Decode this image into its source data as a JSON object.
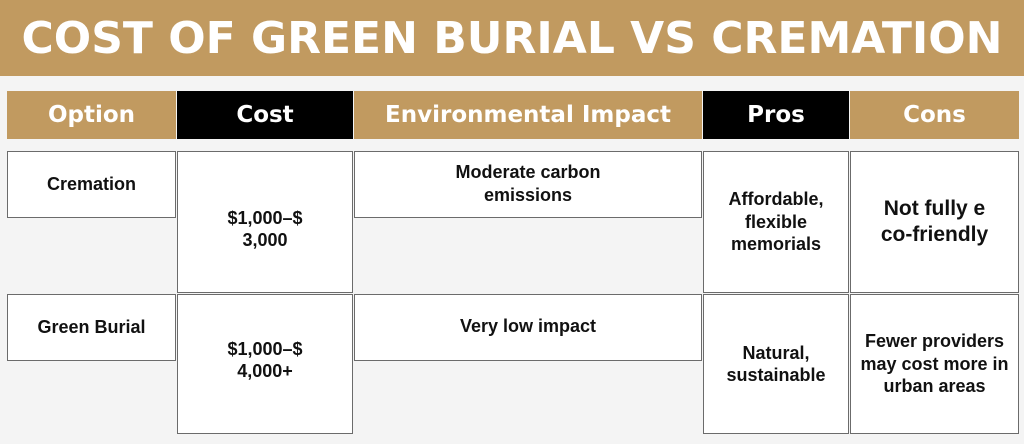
{
  "title": "COST OF GREEN BURIAL VS CREMATION",
  "colors": {
    "gold": "#c19a60",
    "black": "#000000",
    "cell_bg": "#ffffff",
    "page_bg": "#f4f4f4"
  },
  "table": {
    "headers": [
      "Option",
      "Cost",
      "Environmental Impact",
      "Pros",
      "Cons"
    ],
    "rows": [
      {
        "option": "Cremation",
        "cost": "$1,000–$ 3,000",
        "environmental_impact": "Moderate carbon emissions",
        "pros": "Affordable, flexible memorials",
        "cons": "Not fully eco-friendly"
      },
      {
        "option": "Green Burial",
        "cost": "$1,000–$ 4,000+",
        "environmental_impact": "Very low impact",
        "pros": "Natural, sustainable",
        "cons": "Fewer providers may cost more in urban areas"
      }
    ]
  }
}
